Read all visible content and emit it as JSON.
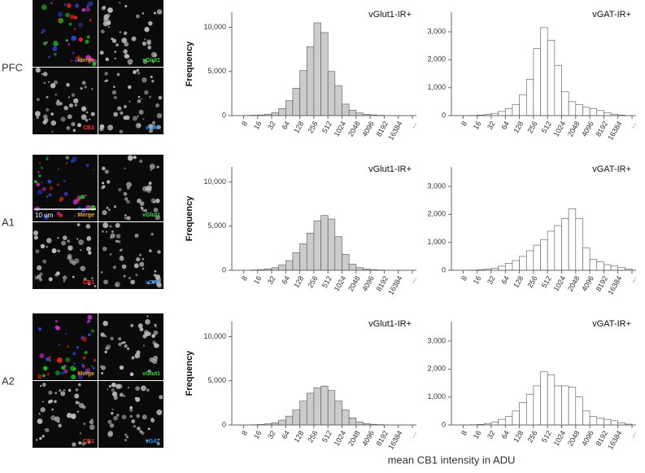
{
  "figure": {
    "rows": [
      {
        "label": "PFC",
        "image_labels": [
          "Merge",
          "vGlut1",
          "CB1",
          "vGAT"
        ]
      },
      {
        "label": "A1",
        "image_labels": [
          "Merge",
          "vGlut1",
          "CB1",
          "vGAT"
        ],
        "scale_bar": "10 um"
      },
      {
        "label": "A2",
        "image_labels": [
          "Merge",
          "vGlut1",
          "CB1",
          "vGAT"
        ]
      }
    ],
    "x_label": "mean CB1 intensity in ADU"
  },
  "chart_data": [
    {
      "type": "histogram",
      "title": "vGlut1-IR+",
      "ylabel": "Frequency",
      "color": "#cccccc",
      "edgecolor": "#555555",
      "xscale": "log",
      "bins": [
        4,
        5.66,
        8,
        11.31,
        16,
        22.63,
        32,
        45.25,
        64,
        90.51,
        128,
        181.02,
        256,
        362.04,
        512,
        724.08,
        1024,
        1448.15,
        2048,
        2896.31,
        4096,
        5792.62,
        8192,
        11585.24,
        16384,
        23170.48,
        32768
      ],
      "values": [
        0,
        10,
        30,
        50,
        80,
        150,
        350,
        800,
        1700,
        3100,
        5100,
        7800,
        10500,
        9400,
        5000,
        3400,
        1300,
        600,
        300,
        150,
        80,
        40,
        20,
        10,
        0,
        0
      ],
      "xlim": [
        4.5,
        40000
      ],
      "xticks": [
        8,
        16,
        32,
        64,
        128,
        256,
        512,
        1024,
        2048,
        4096,
        8192,
        16384,
        {
          "value": 32768,
          "label": "..."
        }
      ],
      "ylim": [
        0,
        11700
      ],
      "yticks": [
        0,
        {
          "value": 5000,
          "label": "5,000"
        },
        {
          "value": 10000,
          "label": "10,000"
        }
      ]
    },
    {
      "type": "histogram",
      "title": "vGAT-IR+",
      "color": "#ffffff",
      "edgecolor": "#555555",
      "xscale": "log",
      "bins": [
        4,
        5.66,
        8,
        11.31,
        16,
        22.63,
        32,
        45.25,
        64,
        90.51,
        128,
        181.02,
        256,
        362.04,
        512,
        724.08,
        1024,
        1448.15,
        2048,
        2896.31,
        4096,
        5792.62,
        8192,
        11585.24,
        16384,
        23170.48,
        32768
      ],
      "values": [
        0,
        0,
        5,
        10,
        20,
        40,
        80,
        150,
        250,
        400,
        750,
        1300,
        2400,
        3150,
        2700,
        1800,
        850,
        500,
        400,
        300,
        250,
        180,
        100,
        50,
        20,
        0
      ],
      "xlim": [
        4.5,
        40000
      ],
      "xticks": [
        8,
        16,
        32,
        64,
        128,
        256,
        512,
        1024,
        2048,
        4096,
        8192,
        16384,
        {
          "value": 32768,
          "label": "..."
        }
      ],
      "ylim": [
        0,
        3700
      ],
      "yticks": [
        0,
        {
          "value": 1000,
          "label": "1,000"
        },
        {
          "value": 2000,
          "label": "2,000"
        },
        {
          "value": 3000,
          "label": "3,000"
        }
      ]
    },
    {
      "type": "histogram",
      "title": "vGlut1-IR+",
      "ylabel": "Frequency",
      "color": "#cccccc",
      "edgecolor": "#555555",
      "xscale": "log",
      "bins": [
        4,
        5.66,
        8,
        11.31,
        16,
        22.63,
        32,
        45.25,
        64,
        90.51,
        128,
        181.02,
        256,
        362.04,
        512,
        724.08,
        1024,
        1448.15,
        2048,
        2896.31,
        4096,
        5792.62,
        8192,
        11585.24,
        16384,
        23170.48,
        32768
      ],
      "values": [
        0,
        5,
        20,
        40,
        80,
        150,
        300,
        600,
        1100,
        2000,
        3000,
        4200,
        5600,
        6200,
        5800,
        3800,
        1800,
        700,
        300,
        150,
        80,
        40,
        20,
        10,
        0,
        0
      ],
      "xlim": [
        4.5,
        40000
      ],
      "xticks": [
        8,
        16,
        32,
        64,
        128,
        256,
        512,
        1024,
        2048,
        4096,
        8192,
        16384,
        {
          "value": 32768,
          "label": "..."
        }
      ],
      "ylim": [
        0,
        11700
      ],
      "yticks": [
        0,
        {
          "value": 5000,
          "label": "5,000"
        },
        {
          "value": 10000,
          "label": "10,000"
        }
      ]
    },
    {
      "type": "histogram",
      "title": "vGAT-IR+",
      "color": "#ffffff",
      "edgecolor": "#555555",
      "xscale": "log",
      "bins": [
        4,
        5.66,
        8,
        11.31,
        16,
        22.63,
        32,
        45.25,
        64,
        90.51,
        128,
        181.02,
        256,
        362.04,
        512,
        724.08,
        1024,
        1448.15,
        2048,
        2896.31,
        4096,
        5792.62,
        8192,
        11585.24,
        16384,
        23170.48,
        32768
      ],
      "values": [
        0,
        0,
        5,
        10,
        20,
        40,
        70,
        150,
        250,
        350,
        500,
        700,
        900,
        1100,
        1400,
        1600,
        1850,
        2200,
        1850,
        800,
        400,
        300,
        200,
        150,
        100,
        50
      ],
      "xlim": [
        4.5,
        40000
      ],
      "xticks": [
        8,
        16,
        32,
        64,
        128,
        256,
        512,
        1024,
        2048,
        4096,
        8192,
        16384,
        {
          "value": 32768,
          "label": "..."
        }
      ],
      "ylim": [
        0,
        3700
      ],
      "yticks": [
        0,
        {
          "value": 1000,
          "label": "1,000"
        },
        {
          "value": 2000,
          "label": "2,000"
        },
        {
          "value": 3000,
          "label": "3,000"
        }
      ]
    },
    {
      "type": "histogram",
      "title": "vGlut1-IR+",
      "ylabel": "Frequency",
      "color": "#cccccc",
      "edgecolor": "#555555",
      "xscale": "log",
      "bins": [
        4,
        5.66,
        8,
        11.31,
        16,
        22.63,
        32,
        45.25,
        64,
        90.51,
        128,
        181.02,
        256,
        362.04,
        512,
        724.08,
        1024,
        1448.15,
        2048,
        2896.31,
        4096,
        5792.62,
        8192,
        11585.24,
        16384,
        23170.48,
        32768
      ],
      "values": [
        0,
        5,
        15,
        30,
        60,
        120,
        250,
        550,
        1000,
        1700,
        2700,
        3600,
        4200,
        4400,
        3900,
        2700,
        1700,
        800,
        350,
        150,
        80,
        40,
        20,
        10,
        0,
        0
      ],
      "xlim": [
        4.5,
        40000
      ],
      "xticks": [
        8,
        16,
        32,
        64,
        128,
        256,
        512,
        1024,
        2048,
        4096,
        8192,
        16384,
        {
          "value": 32768,
          "label": "..."
        }
      ],
      "ylim": [
        0,
        11700
      ],
      "yticks": [
        0,
        {
          "value": 5000,
          "label": "5,000"
        },
        {
          "value": 10000,
          "label": "10,000"
        }
      ]
    },
    {
      "type": "histogram",
      "title": "vGAT-IR+",
      "color": "#ffffff",
      "edgecolor": "#555555",
      "xscale": "log",
      "bins": [
        4,
        5.66,
        8,
        11.31,
        16,
        22.63,
        32,
        45.25,
        64,
        90.51,
        128,
        181.02,
        256,
        362.04,
        512,
        724.08,
        1024,
        1448.15,
        2048,
        2896.31,
        4096,
        5792.62,
        8192,
        11585.24,
        16384,
        23170.48,
        32768
      ],
      "values": [
        0,
        0,
        5,
        10,
        20,
        50,
        100,
        200,
        300,
        500,
        800,
        1100,
        1400,
        1900,
        1800,
        1400,
        1400,
        1350,
        1000,
        500,
        300,
        250,
        200,
        150,
        80,
        30
      ],
      "xlim": [
        4.5,
        40000
      ],
      "xticks": [
        8,
        16,
        32,
        64,
        128,
        256,
        512,
        1024,
        2048,
        4096,
        8192,
        16384,
        {
          "value": 32768,
          "label": "..."
        }
      ],
      "ylim": [
        0,
        3700
      ],
      "yticks": [
        0,
        {
          "value": 1000,
          "label": "1,000"
        },
        {
          "value": 2000,
          "label": "2,000"
        },
        {
          "value": 3000,
          "label": "3,000"
        }
      ]
    }
  ]
}
